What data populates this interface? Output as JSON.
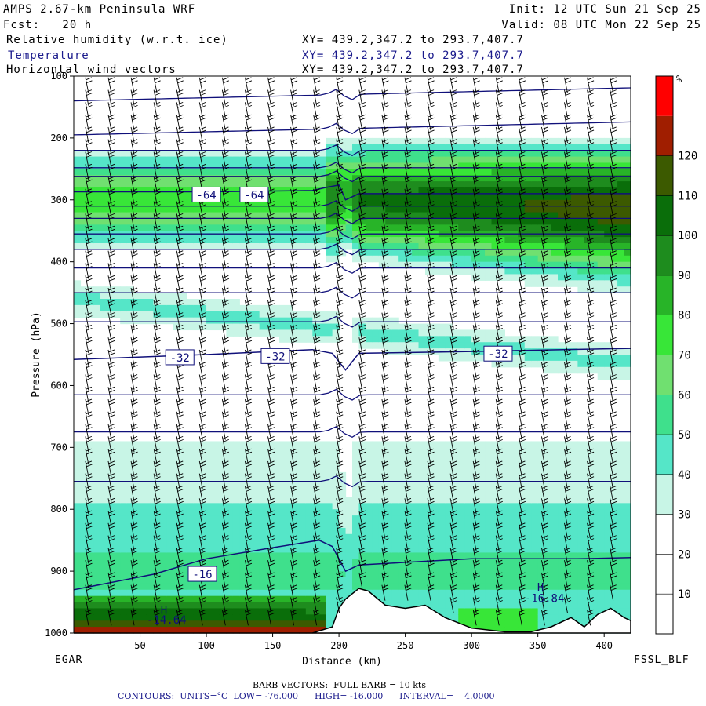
{
  "header": {
    "model_title": "AMPS 2.67-km Peninsula WRF",
    "forecast": "Fcst:   20 h",
    "init": "Init: 12 UTC Sun 21 Sep 25",
    "valid": "Valid: 08 UTC Mon 22 Sep 25",
    "fields": [
      {
        "name": "Relative humidity (w.r.t. ice)",
        "xy": "XY= 439.2,347.2 to 293.7,407.7",
        "color": "#000000"
      },
      {
        "name": "Temperature",
        "xy": "XY= 439.2,347.2 to 293.7,407.7",
        "color": "#1a1a8c"
      },
      {
        "name": "Horizontal wind vectors",
        "xy": "XY= 439.2,347.2 to 293.7,407.7",
        "color": "#000000"
      }
    ]
  },
  "footer": {
    "left_station": "EGAR",
    "right_station": "FSSL_BLF",
    "barb_note": "BARB VECTORS:  FULL BARB = 10 kts",
    "contours_note": "CONTOURS:  UNITS=°C  LOW= -76.000      HIGH= -16.000      INTERVAL=    4.0000"
  },
  "chart_data": {
    "type": "heatmap",
    "xlabel": "Distance (km)",
    "ylabel": "Pressure (hPa)",
    "xlim": [
      0,
      420
    ],
    "ylim": [
      1000,
      100
    ],
    "x_ticks": [
      50,
      100,
      150,
      200,
      250,
      300,
      350,
      400
    ],
    "y_ticks": [
      100,
      200,
      300,
      400,
      500,
      600,
      700,
      800,
      900,
      1000
    ],
    "colorbar": {
      "unit": "%",
      "levels": [
        0,
        10,
        20,
        30,
        40,
        50,
        60,
        70,
        80,
        90,
        100,
        110,
        120,
        130
      ],
      "tick_labels": [
        "10",
        "20",
        "30",
        "40",
        "50",
        "60",
        "70",
        "80",
        "90",
        "100",
        "110",
        "120"
      ],
      "colors": [
        "#ffffff",
        "#ffffff",
        "#ffffff",
        "#c8f5e6",
        "#55e6c8",
        "#3fe08c",
        "#70e070",
        "#38e638",
        "#28b428",
        "#1e8c1e",
        "#0a6e0a",
        "#3c5a00",
        "#a01e00",
        "#ff0000"
      ]
    },
    "terrain_profile": {
      "x": [
        0,
        100,
        180,
        195,
        200,
        205,
        215,
        222,
        235,
        250,
        265,
        280,
        300,
        325,
        345,
        360,
        375,
        385,
        395,
        405,
        415,
        420
      ],
      "p": [
        1000,
        1000,
        1000,
        990,
        960,
        945,
        928,
        932,
        955,
        960,
        955,
        975,
        992,
        998,
        998,
        990,
        975,
        990,
        970,
        960,
        975,
        980
      ]
    },
    "temperature_contours": [
      {
        "level": -64,
        "x": [
          0,
          100,
          180,
          190,
          200,
          205,
          215,
          300,
          420
        ],
        "p": [
          287,
          287,
          285,
          280,
          276,
          300,
          290,
          290,
          290
        ]
      },
      {
        "level": -32,
        "x": [
          0,
          100,
          180,
          195,
          205,
          215,
          300,
          420
        ],
        "p": [
          558,
          550,
          542,
          548,
          575,
          548,
          545,
          540
        ]
      },
      {
        "level": -16,
        "x": [
          0,
          60,
          100,
          150,
          185,
          195,
          205,
          215,
          300,
          380,
          420
        ],
        "p": [
          930,
          905,
          880,
          862,
          850,
          860,
          900,
          890,
          880,
          880,
          878
        ]
      }
    ],
    "temperature_labels": [
      {
        "text": "-64",
        "x": 100,
        "p": 292
      },
      {
        "text": "-64",
        "x": 136,
        "p": 292
      },
      {
        "text": "-32",
        "x": 80,
        "p": 555
      },
      {
        "text": "-32",
        "x": 152,
        "p": 553
      },
      {
        "text": "-32",
        "x": 320,
        "p": 549
      },
      {
        "text": "-16",
        "x": 97,
        "p": 905
      }
    ],
    "annotations": [
      {
        "text": "H",
        "x": 68,
        "p": 969,
        "value": "-14.64",
        "vx": 70,
        "vp": 985
      },
      {
        "text": "H",
        "x": 352,
        "p": 932,
        "value": "-16.84",
        "vx": 355,
        "vp": 950
      }
    ]
  }
}
